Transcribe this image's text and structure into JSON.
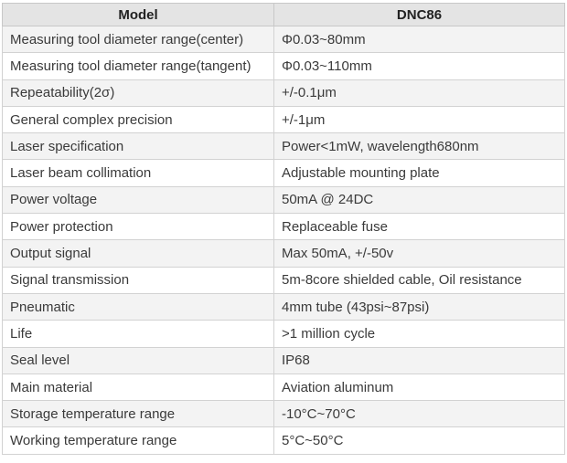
{
  "table": {
    "headers": [
      "Model",
      "DNC86"
    ],
    "rows": [
      [
        "Measuring tool diameter range(center)",
        "Φ0.03~80mm"
      ],
      [
        "Measuring tool diameter range(tangent)",
        "Φ0.03~110mm"
      ],
      [
        "Repeatability(2σ)",
        "+/-0.1μm"
      ],
      [
        "General complex precision",
        "+/-1μm"
      ],
      [
        "Laser specification",
        "Power<1mW, wavelength680nm"
      ],
      [
        "Laser beam collimation",
        "Adjustable mounting plate"
      ],
      [
        "Power voltage",
        "50mA @ 24DC"
      ],
      [
        "Power protection",
        "Replaceable fuse"
      ],
      [
        "Output signal",
        "Max 50mA, +/-50v"
      ],
      [
        "Signal transmission",
        "5m-8core shielded cable, Oil resistance"
      ],
      [
        "Pneumatic",
        "4mm tube (43psi~87psi)"
      ],
      [
        "Life",
        ">1 million cycle"
      ],
      [
        "Seal level",
        "IP68"
      ],
      [
        "Main material",
        "Aviation aluminum"
      ],
      [
        "Storage temperature range",
        "-10°C~70°C"
      ],
      [
        "Working temperature range",
        "5°C~50°C"
      ]
    ]
  }
}
